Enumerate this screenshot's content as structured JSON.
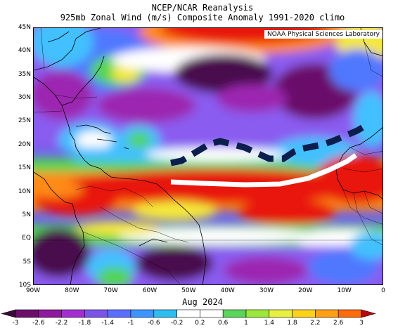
{
  "title": "NCEP/NCAR Reanalysis",
  "subtitle": "925mb Zonal Wind (m/s) Composite Anomaly 1991-2020 climo",
  "credit": "NOAA Physical Sciences Laboratory",
  "date_label": "Aug 2024",
  "lat_labels": [
    "45N",
    "40N",
    "35N",
    "30N",
    "25N",
    "20N",
    "15N",
    "10N",
    "5N",
    "EQ",
    "5S",
    "10S"
  ],
  "lon_labels": [
    "90W",
    "80W",
    "70W",
    "60W",
    "50W",
    "40W",
    "30W",
    "20W",
    "10W",
    "0"
  ],
  "colorbar_labels": [
    "-3",
    "-2.6",
    "-2.2",
    "-1.8",
    "-1.4",
    "-1",
    "-0.6",
    "-0.2",
    "0.2",
    "0.6",
    "1",
    "1.4",
    "1.8",
    "2.2",
    "2.6",
    "3"
  ],
  "colorbar_colors": [
    "#3b0a3b",
    "#6b0f6b",
    "#8e1a9e",
    "#a32fcf",
    "#7b55e8",
    "#5a6fff",
    "#3e95ff",
    "#2ebdf0",
    "#ffffff",
    "#ffffff",
    "#5ad65a",
    "#9be83a",
    "#e8f040",
    "#ffd21a",
    "#ffa014",
    "#ff6a0a",
    "#f02814",
    "#b80a0a"
  ],
  "colors": {
    "dark_purple": "#4a0e4e",
    "purple": "#9c27b0",
    "violet": "#8a5cf0",
    "blue": "#4f78ff",
    "cyan": "#43c0ff",
    "white": "#ffffff",
    "green": "#52d452",
    "yellow": "#f5e83a",
    "orange": "#ff8a14",
    "red": "#e8140a"
  },
  "annotations": {
    "dashed_line_color": "#0c1e4e",
    "arc_line_color": "#ffffff"
  }
}
